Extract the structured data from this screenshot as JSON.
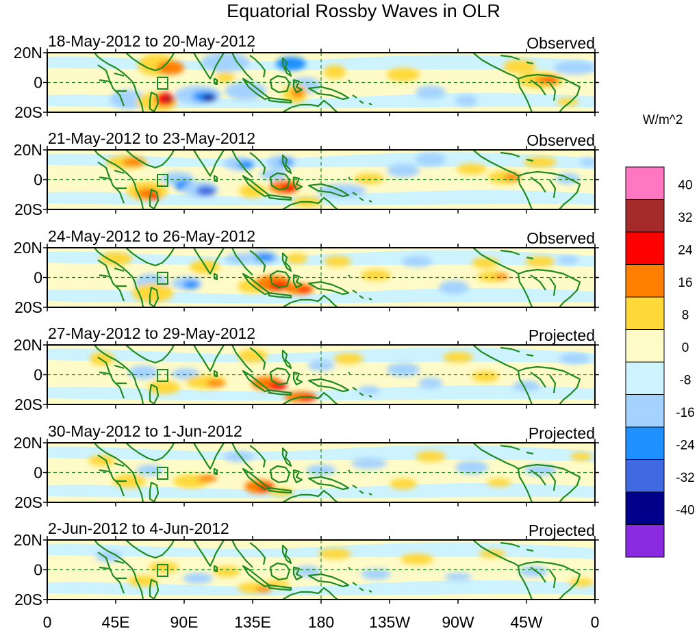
{
  "title": "Equatorial Rossby Waves in OLR",
  "units": "W/m^2",
  "lat_ticks": [
    "20N",
    "0",
    "20S"
  ],
  "lon_ticks": [
    "0",
    "45E",
    "90E",
    "135E",
    "180",
    "135W",
    "90W",
    "45W",
    "0"
  ],
  "panels": [
    {
      "date": "18-May-2012 to 20-May-2012",
      "kind": "Observed"
    },
    {
      "date": "21-May-2012 to 23-May-2012",
      "kind": "Observed"
    },
    {
      "date": "24-May-2012 to 26-May-2012",
      "kind": "Observed"
    },
    {
      "date": "27-May-2012 to 29-May-2012",
      "kind": "Projected"
    },
    {
      "date": "30-May-2012 to 1-Jun-2012",
      "kind": "Projected"
    },
    {
      "date": "2-Jun-2012 to 4-Jun-2012",
      "kind": "Projected"
    }
  ],
  "colorbar": {
    "labels": [
      "40",
      "32",
      "24",
      "16",
      "8",
      "0",
      "-8",
      "-16",
      "-24",
      "-32",
      "-40"
    ],
    "colors": [
      "#ff77c0",
      "#a52a2a",
      "#ff0000",
      "#ff7f00",
      "#ffd83a",
      "#fffbc8",
      "#cdf3ff",
      "#a4d3ff",
      "#1e90ff",
      "#4169e1",
      "#00008b",
      "#8a2be2"
    ]
  },
  "colors": {
    "coast": "#1f8a1f",
    "dash": "#1f8a1f"
  }
}
